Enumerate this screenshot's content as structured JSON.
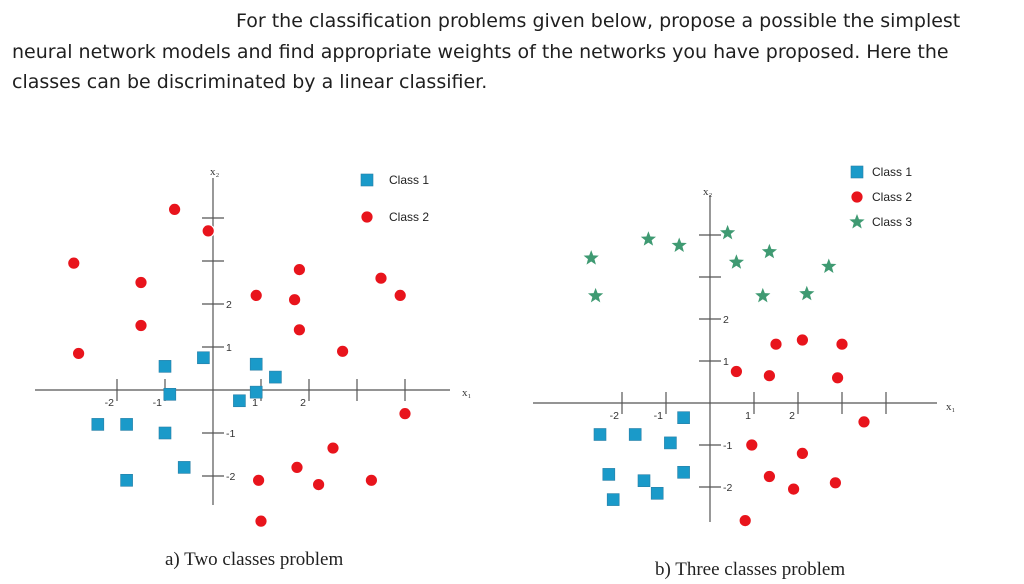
{
  "prompt": {
    "line1": "For the classification problems given below, propose a possible the simplest",
    "line2": "neural network models and find appropriate weights of the networks you have proposed. Here the",
    "line3": "classes can be discriminated by a linear classifier."
  },
  "colors": {
    "square": "#1a9ac9",
    "circle": "#e8141c",
    "star": "#3f9a72",
    "axis": "#555555"
  },
  "chart_data": [
    {
      "type": "scatter",
      "caption": "a)   Two classes problem",
      "xlabel": "x₁",
      "ylabel": "x₂",
      "xlim": [
        -4,
        6.5
      ],
      "ylim": [
        -3.5,
        4.5
      ],
      "xticks": [
        -2,
        -1,
        1,
        2
      ],
      "yticks": [
        -2,
        -1,
        1,
        2
      ],
      "legend": {
        "position": "top-right",
        "entries": [
          "Class 1",
          "Class 2"
        ]
      },
      "series": [
        {
          "name": "Class 1",
          "marker": "square",
          "points": [
            [
              -2.4,
              -0.8
            ],
            [
              -1.8,
              -0.8
            ],
            [
              -0.9,
              -0.1
            ],
            [
              -1.0,
              0.55
            ],
            [
              -0.2,
              0.75
            ],
            [
              0.9,
              0.6
            ],
            [
              1.3,
              0.3
            ],
            [
              0.55,
              -0.25
            ],
            [
              0.9,
              -0.05
            ],
            [
              -1.0,
              -1.0
            ],
            [
              -1.8,
              -2.1
            ],
            [
              -0.6,
              -1.8
            ]
          ]
        },
        {
          "name": "Class 2",
          "marker": "circle",
          "points": [
            [
              -0.8,
              4.2
            ],
            [
              -0.1,
              3.7
            ],
            [
              -2.9,
              2.95
            ],
            [
              -1.5,
              2.5
            ],
            [
              0.9,
              2.2
            ],
            [
              1.7,
              2.1
            ],
            [
              1.8,
              2.8
            ],
            [
              3.5,
              2.6
            ],
            [
              3.9,
              2.2
            ],
            [
              -1.5,
              1.5
            ],
            [
              1.8,
              1.4
            ],
            [
              2.7,
              0.9
            ],
            [
              -2.8,
              0.85
            ],
            [
              4.0,
              -0.55
            ],
            [
              2.5,
              -1.35
            ],
            [
              0.95,
              -2.1
            ],
            [
              1.75,
              -1.8
            ],
            [
              2.2,
              -2.2
            ],
            [
              3.3,
              -2.1
            ],
            [
              1.0,
              -3.05
            ]
          ]
        }
      ]
    },
    {
      "type": "scatter",
      "caption": "b)   Three classes problem",
      "xlabel": "x₁",
      "ylabel": "x₂",
      "xlim": [
        -4.5,
        5.5
      ],
      "ylim": [
        -3.5,
        5
      ],
      "xticks": [
        -2,
        -1,
        1,
        2
      ],
      "yticks": [
        -2,
        -1,
        1,
        2
      ],
      "legend": {
        "position": "top-right",
        "entries": [
          "Class 1",
          "Class 2",
          "Class 3"
        ]
      },
      "series": [
        {
          "name": "Class 1",
          "marker": "square",
          "points": [
            [
              -2.5,
              -0.75
            ],
            [
              -1.7,
              -0.75
            ],
            [
              -0.6,
              -0.35
            ],
            [
              -0.9,
              -0.95
            ],
            [
              -2.3,
              -1.7
            ],
            [
              -1.5,
              -1.85
            ],
            [
              -1.2,
              -2.15
            ],
            [
              -0.6,
              -1.65
            ],
            [
              -2.2,
              -2.3
            ]
          ]
        },
        {
          "name": "Class 2",
          "marker": "circle",
          "points": [
            [
              1.5,
              1.4
            ],
            [
              2.1,
              1.5
            ],
            [
              3.0,
              1.4
            ],
            [
              0.6,
              0.75
            ],
            [
              1.35,
              0.65
            ],
            [
              2.9,
              0.6
            ],
            [
              3.5,
              -0.45
            ],
            [
              0.95,
              -1.0
            ],
            [
              2.1,
              -1.2
            ],
            [
              1.35,
              -1.75
            ],
            [
              1.9,
              -2.05
            ],
            [
              2.85,
              -1.9
            ],
            [
              0.8,
              -2.8
            ]
          ]
        },
        {
          "name": "Class 3",
          "marker": "star",
          "points": [
            [
              -2.7,
              3.45
            ],
            [
              -1.4,
              3.9
            ],
            [
              -0.7,
              3.75
            ],
            [
              0.4,
              4.05
            ],
            [
              0.6,
              3.35
            ],
            [
              1.35,
              3.6
            ],
            [
              2.7,
              3.25
            ],
            [
              -2.6,
              2.55
            ],
            [
              1.2,
              2.55
            ],
            [
              2.2,
              2.6
            ]
          ]
        }
      ]
    }
  ]
}
